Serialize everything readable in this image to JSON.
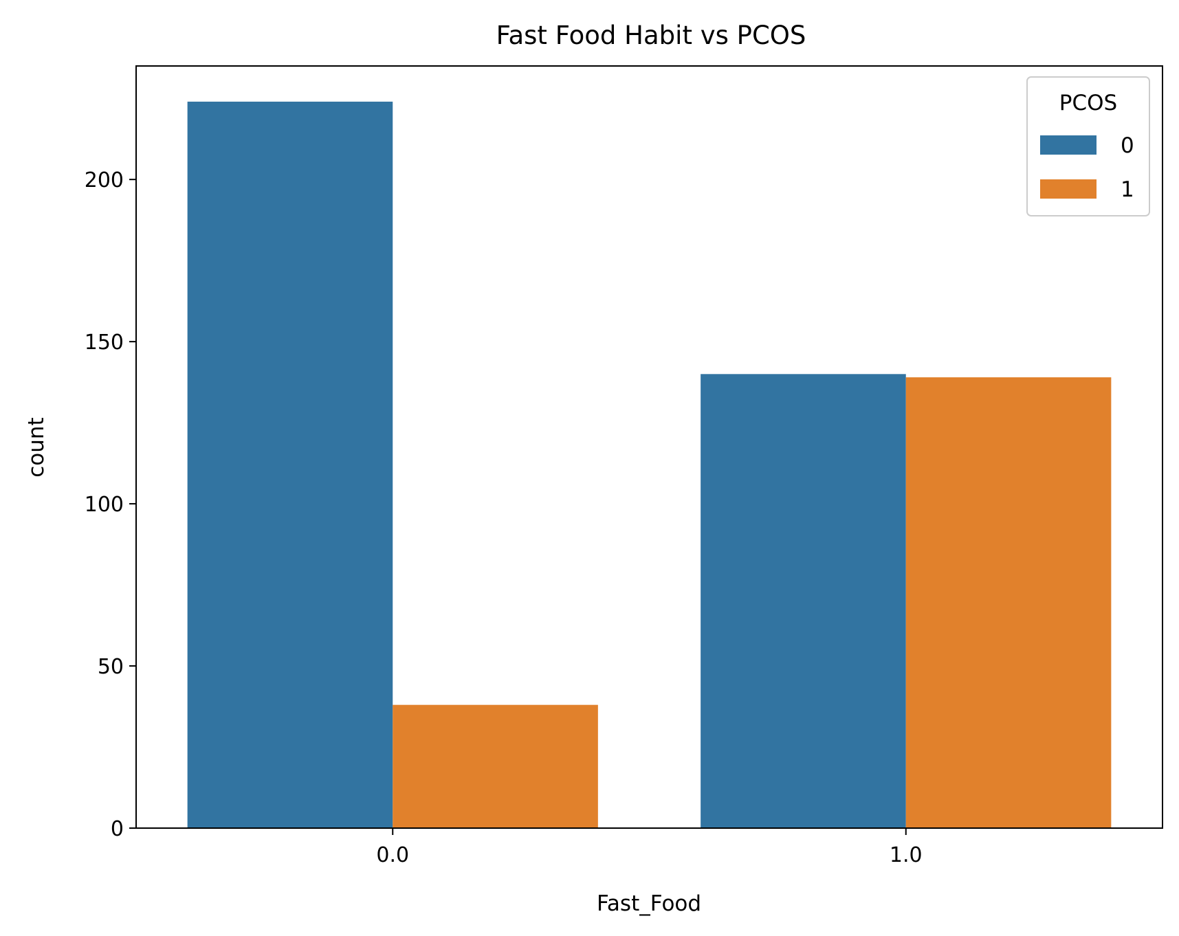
{
  "chart_data": {
    "type": "bar",
    "title": "Fast Food Habit vs PCOS",
    "xlabel": "Fast_Food",
    "ylabel": "count",
    "categories": [
      "0.0",
      "1.0"
    ],
    "series": [
      {
        "name": "0",
        "values": [
          224,
          140
        ],
        "color": "#3274a1"
      },
      {
        "name": "1",
        "values": [
          38,
          139
        ],
        "color": "#e1812c"
      }
    ],
    "yticks": [
      0,
      50,
      100,
      150,
      200
    ],
    "ylim": [
      0,
      235
    ],
    "legend": {
      "title": "PCOS",
      "position": "top-right"
    },
    "grid": false
  }
}
